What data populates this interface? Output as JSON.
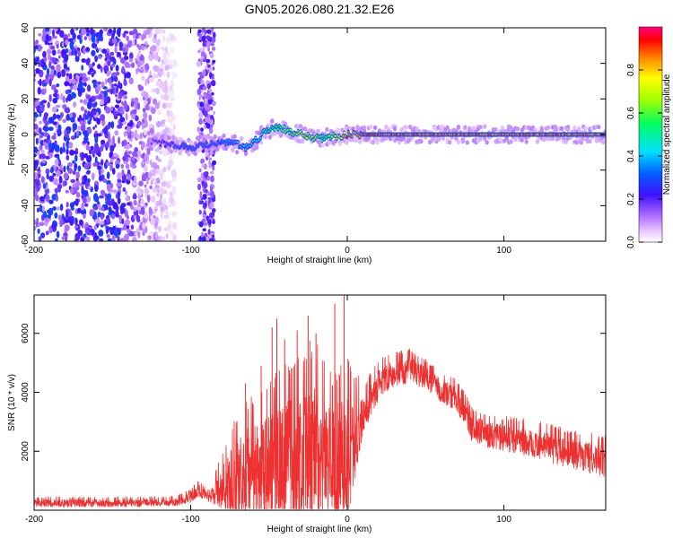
{
  "title": "GN05.2026.080.21.32.E26",
  "chart_data": [
    {
      "type": "heatmap",
      "panel": "spectrogram",
      "xlabel": "Height of straight line (km)",
      "ylabel": "Frequency (Hz)",
      "xlim": [
        -200,
        165
      ],
      "ylim": [
        -60,
        60
      ],
      "xticks": [
        -200,
        -100,
        0,
        100
      ],
      "xtick_labels": [
        "-200",
        "-100",
        "0",
        "100"
      ],
      "yticks": [
        60,
        40,
        20,
        0,
        -20,
        -40,
        -60
      ],
      "ytick_labels": [
        "60",
        "40",
        "20",
        "0",
        "-20",
        "-40",
        "-60"
      ],
      "ridge": {
        "x": [
          -125,
          -110,
          -100,
          -90,
          -80,
          -72,
          -65,
          -58,
          -52,
          -46,
          -40,
          -34,
          -28,
          -22,
          -16,
          -10,
          -4,
          0,
          10,
          165
        ],
        "freq": [
          -4,
          -6,
          -7,
          -6,
          -4,
          -5,
          -7,
          -3,
          2,
          4,
          3,
          1,
          0,
          -2,
          -2,
          -1,
          -1,
          0,
          0,
          0
        ],
        "amplitude": [
          0.2,
          0.3,
          0.35,
          0.3,
          0.35,
          0.4,
          0.45,
          0.5,
          0.55,
          0.6,
          0.65,
          0.7,
          0.75,
          0.7,
          0.6,
          0.65,
          0.8,
          0.95,
          0.95,
          0.95
        ]
      },
      "noise_region_x": [
        -200,
        -110
      ],
      "noise_band_x": [
        -95,
        -85
      ]
    },
    {
      "type": "colorbar",
      "label": "Normalized spectral amplitude",
      "range": [
        0.0,
        1.0
      ],
      "ticks": [
        0.0,
        0.2,
        0.4,
        0.6,
        0.8
      ],
      "tick_labels": [
        "0.0",
        "0.2",
        "0.4",
        "0.6",
        "0.8"
      ]
    },
    {
      "type": "line",
      "panel": "snr",
      "xlabel": "Height of straight line (km)",
      "ylabel": "SNR (10 * v/v)",
      "xlim": [
        -200,
        165
      ],
      "ylim": [
        0,
        7300
      ],
      "xticks": [
        -200,
        -100,
        0,
        100
      ],
      "xtick_labels": [
        "-200",
        "-100",
        "0",
        "100"
      ],
      "yticks": [
        2000,
        4000,
        6000
      ],
      "ytick_labels": [
        "2000",
        "4000",
        "6000"
      ],
      "color": "#ee3030",
      "envelope": {
        "x": [
          -200,
          -150,
          -110,
          -100,
          -95,
          -90,
          -85,
          -80,
          -70,
          -60,
          -50,
          -40,
          -30,
          -20,
          -10,
          0,
          10,
          20,
          30,
          40,
          50,
          60,
          70,
          75,
          80,
          90,
          100,
          120,
          140,
          165
        ],
        "base": [
          250,
          250,
          280,
          450,
          700,
          500,
          600,
          800,
          1200,
          1500,
          1600,
          1800,
          1900,
          2000,
          1700,
          1900,
          3300,
          4300,
          4700,
          4800,
          4500,
          4100,
          3800,
          3300,
          2800,
          2600,
          2500,
          2300,
          2000,
          1700
        ],
        "amp": [
          150,
          150,
          150,
          200,
          250,
          200,
          400,
          900,
          1600,
          1800,
          2000,
          2400,
          2600,
          2800,
          2200,
          2500,
          700,
          600,
          500,
          500,
          450,
          450,
          450,
          500,
          500,
          500,
          500,
          550,
          550,
          600
        ]
      },
      "spikes": [
        {
          "x": -65,
          "y": 4300
        },
        {
          "x": -55,
          "y": 4900
        },
        {
          "x": -48,
          "y": 6200
        },
        {
          "x": -45,
          "y": 6500
        },
        {
          "x": -40,
          "y": 5800
        },
        {
          "x": -32,
          "y": 6100
        },
        {
          "x": -25,
          "y": 6600
        },
        {
          "x": -20,
          "y": 6000
        },
        {
          "x": -8,
          "y": 7000
        },
        {
          "x": -2,
          "y": 7300
        }
      ]
    }
  ]
}
